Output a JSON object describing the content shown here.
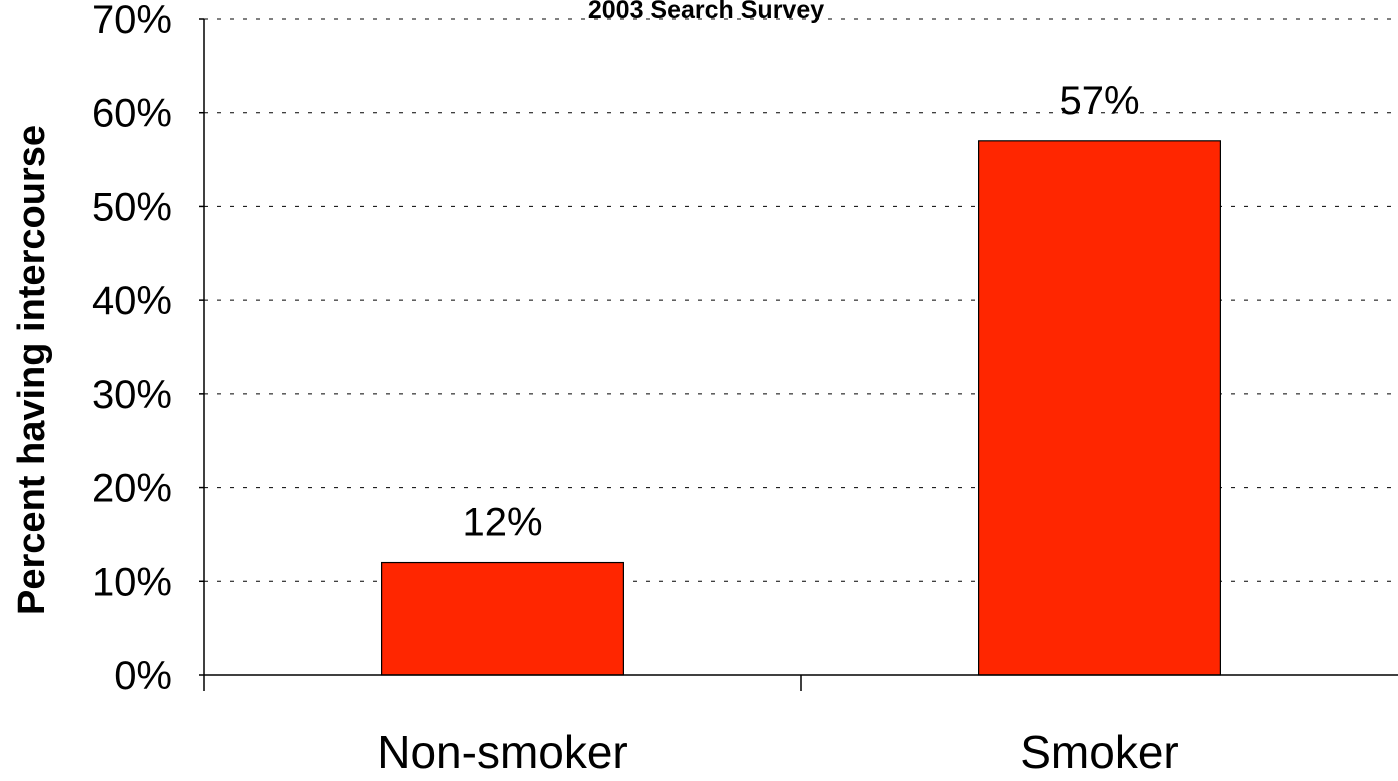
{
  "chart_data": {
    "type": "bar",
    "title": "2003 Search Survey",
    "ylabel": "Percent having intercourse",
    "xlabel": "",
    "categories": [
      "Non-smoker",
      "Smoker"
    ],
    "values": [
      12,
      57
    ],
    "data_labels": [
      "12%",
      "57%"
    ],
    "ylim": [
      0,
      70
    ],
    "yticks": [
      0,
      10,
      20,
      30,
      40,
      50,
      60,
      70
    ],
    "ytick_labels": [
      "0%",
      "10%",
      "20%",
      "30%",
      "40%",
      "50%",
      "60%",
      "70%"
    ],
    "grid": true,
    "grid_style": "dotted",
    "legend": "none",
    "bar_color": "#ff2600",
    "bar_edge_color": "#000000"
  }
}
